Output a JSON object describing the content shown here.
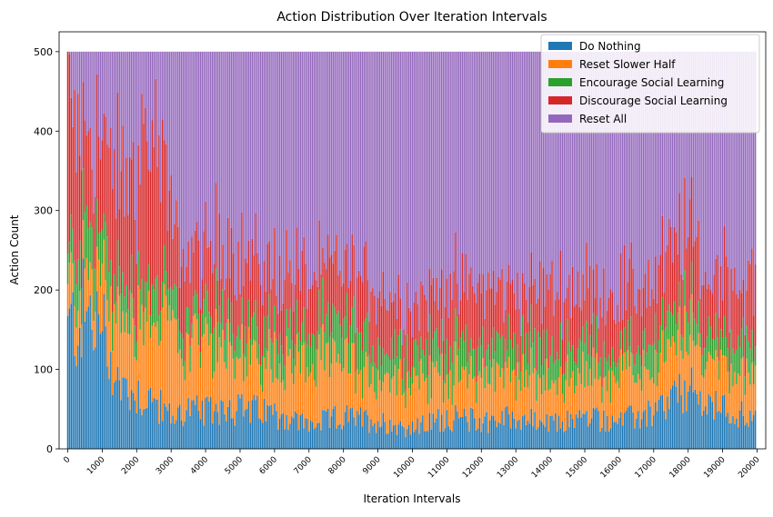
{
  "chart_data": {
    "type": "bar",
    "stacked": true,
    "title": "Action Distribution Over Iteration Intervals",
    "xlabel": "Iteration Intervals",
    "ylabel": "Action Count",
    "ylim": [
      0,
      525
    ],
    "xlim": [
      -250,
      20250
    ],
    "interval_width": 50,
    "interval_total": 500,
    "x_ticks": [
      0,
      1000,
      2000,
      3000,
      4000,
      5000,
      6000,
      7000,
      8000,
      9000,
      10000,
      11000,
      12000,
      13000,
      14000,
      15000,
      16000,
      17000,
      18000,
      19000,
      20000
    ],
    "x_tick_labels": [
      "0",
      "1000",
      "2000",
      "3000",
      "4000",
      "5000",
      "6000",
      "7000",
      "8000",
      "9000",
      "10000",
      "11000",
      "12000",
      "13000",
      "14000",
      "15000",
      "16000",
      "17000",
      "18000",
      "19000",
      "20000"
    ],
    "y_ticks": [
      0,
      100,
      200,
      300,
      400,
      500
    ],
    "y_tick_labels": [
      "0",
      "100",
      "200",
      "300",
      "400",
      "500"
    ],
    "legend_position": "top-right",
    "series": [
      {
        "name": "Do Nothing",
        "color": "#1f77b4",
        "anchors": [
          [
            0,
            150
          ],
          [
            500,
            170
          ],
          [
            1000,
            150
          ],
          [
            1500,
            80
          ],
          [
            2000,
            70
          ],
          [
            2500,
            60
          ],
          [
            3000,
            40
          ],
          [
            3500,
            50
          ],
          [
            4000,
            45
          ],
          [
            4500,
            55
          ],
          [
            5000,
            50
          ],
          [
            6000,
            45
          ],
          [
            7000,
            30
          ],
          [
            8000,
            40
          ],
          [
            9000,
            35
          ],
          [
            10000,
            25
          ],
          [
            11000,
            40
          ],
          [
            12000,
            35
          ],
          [
            13000,
            40
          ],
          [
            14000,
            30
          ],
          [
            15000,
            40
          ],
          [
            16000,
            35
          ],
          [
            17000,
            45
          ],
          [
            18000,
            75
          ],
          [
            18500,
            55
          ],
          [
            19000,
            50
          ],
          [
            19500,
            45
          ],
          [
            20000,
            35
          ]
        ]
      },
      {
        "name": "Reset Slower Half",
        "color": "#ff7f0e",
        "anchors": [
          [
            0,
            50
          ],
          [
            500,
            50
          ],
          [
            1000,
            60
          ],
          [
            1500,
            80
          ],
          [
            2000,
            100
          ],
          [
            2500,
            110
          ],
          [
            3000,
            100
          ],
          [
            3500,
            85
          ],
          [
            4000,
            80
          ],
          [
            4500,
            85
          ],
          [
            5000,
            70
          ],
          [
            6000,
            70
          ],
          [
            7000,
            80
          ],
          [
            8000,
            70
          ],
          [
            9000,
            55
          ],
          [
            10000,
            60
          ],
          [
            11000,
            55
          ],
          [
            12000,
            60
          ],
          [
            13000,
            55
          ],
          [
            14000,
            55
          ],
          [
            15000,
            55
          ],
          [
            16000,
            55
          ],
          [
            17000,
            55
          ],
          [
            18000,
            75
          ],
          [
            18500,
            60
          ],
          [
            19000,
            60
          ],
          [
            19500,
            55
          ],
          [
            20000,
            60
          ]
        ]
      },
      {
        "name": "Encourage Social Learning",
        "color": "#2ca02c",
        "anchors": [
          [
            0,
            35
          ],
          [
            500,
            55
          ],
          [
            1000,
            60
          ],
          [
            1500,
            45
          ],
          [
            2000,
            35
          ],
          [
            2500,
            45
          ],
          [
            3000,
            35
          ],
          [
            3500,
            30
          ],
          [
            4000,
            35
          ],
          [
            4500,
            45
          ],
          [
            5000,
            40
          ],
          [
            6000,
            35
          ],
          [
            7000,
            40
          ],
          [
            8000,
            45
          ],
          [
            9000,
            40
          ],
          [
            10000,
            35
          ],
          [
            11000,
            40
          ],
          [
            12000,
            35
          ],
          [
            13000,
            40
          ],
          [
            14000,
            40
          ],
          [
            15000,
            40
          ],
          [
            16000,
            30
          ],
          [
            17000,
            35
          ],
          [
            18000,
            35
          ],
          [
            18500,
            30
          ],
          [
            19000,
            35
          ],
          [
            19500,
            35
          ],
          [
            20000,
            35
          ]
        ]
      },
      {
        "name": "Discourage Social Learning",
        "color": "#d62728",
        "anchors": [
          [
            0,
            180
          ],
          [
            500,
            140
          ],
          [
            1000,
            110
          ],
          [
            1500,
            130
          ],
          [
            2000,
            150
          ],
          [
            2500,
            190
          ],
          [
            3000,
            100
          ],
          [
            3500,
            75
          ],
          [
            4000,
            80
          ],
          [
            4500,
            90
          ],
          [
            5000,
            75
          ],
          [
            6000,
            80
          ],
          [
            7000,
            65
          ],
          [
            8000,
            75
          ],
          [
            9000,
            70
          ],
          [
            10000,
            65
          ],
          [
            11000,
            70
          ],
          [
            12000,
            70
          ],
          [
            13000,
            65
          ],
          [
            14000,
            75
          ],
          [
            15000,
            70
          ],
          [
            16000,
            75
          ],
          [
            17000,
            80
          ],
          [
            18000,
            95
          ],
          [
            18500,
            70
          ],
          [
            19000,
            85
          ],
          [
            19500,
            80
          ],
          [
            20000,
            70
          ]
        ]
      },
      {
        "name": "Reset All",
        "color": "#9467bd",
        "remainder_of": 500
      }
    ]
  }
}
